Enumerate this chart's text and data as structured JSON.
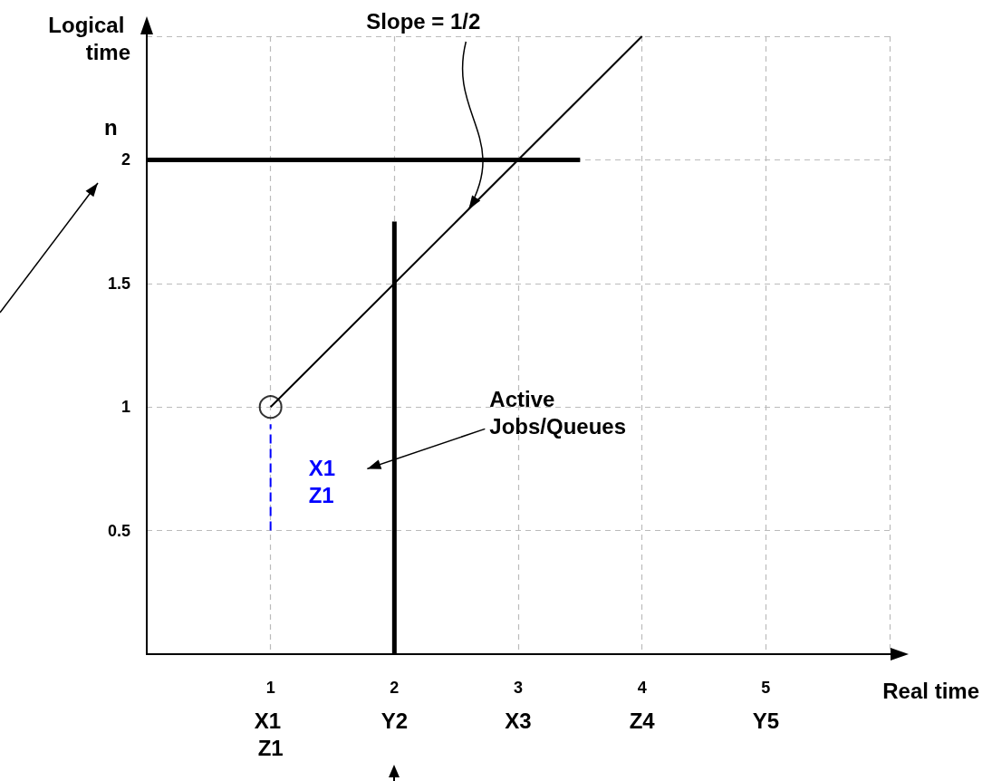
{
  "chart_data": {
    "type": "line",
    "xlabel": "Real time",
    "ylabel": "Logical time",
    "xlim": [
      0,
      6
    ],
    "ylim": [
      0,
      2.5
    ],
    "xticks": [
      1,
      2,
      3,
      4,
      5,
      {
        "value": 6,
        "label": null
      }
    ],
    "yticks": [
      0.5,
      1,
      1.5,
      2,
      {
        "value": 2.5,
        "label": null
      }
    ],
    "grid": true,
    "series": [
      {
        "color": "#000000",
        "x": [
          1,
          4
        ],
        "values": [
          1,
          2.5
        ]
      },
      {
        "color": "#000000",
        "x": [
          0,
          3.5
        ],
        "values": [
          2,
          2
        ]
      },
      {
        "color": "#000000",
        "x": [
          2,
          2
        ],
        "values": [
          0,
          1.75
        ]
      },
      {
        "name": "X1 Z1",
        "color": "#0000ff",
        "x": [
          1,
          1
        ],
        "values": [
          0.5,
          0.93
        ],
        "line_style": "dashed"
      },
      {
        "type": "scatter",
        "color": "#000000",
        "x": [
          1
        ],
        "values": [
          1
        ],
        "marker": "circle"
      }
    ],
    "annotations": [
      {
        "text": "Slope = 1/2",
        "x": 2.6,
        "y": 1.8
      },
      "Active Jobs/Queues",
      "X1 Z1",
      "Y2",
      "X3",
      "Z4",
      "Y5",
      "n"
    ]
  }
}
